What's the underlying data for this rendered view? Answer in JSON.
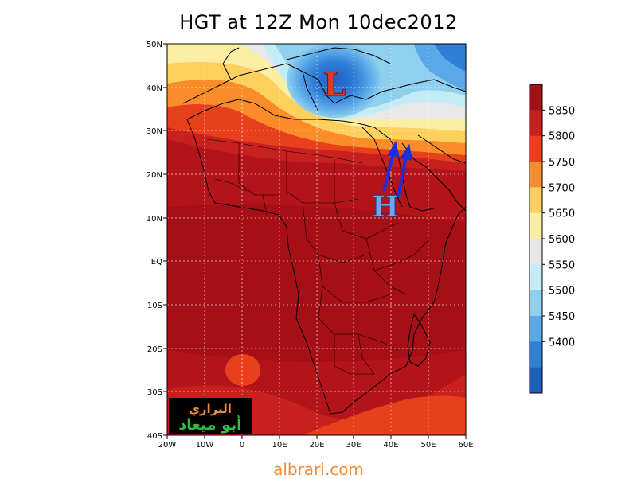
{
  "title": "HGT at 12Z Mon 10dec2012",
  "footer_url": "albrari.com",
  "map": {
    "projection": "lat-lon",
    "lon_range": [
      -20,
      60
    ],
    "lat_range": [
      -40,
      50
    ],
    "grid": "dashed",
    "lon_ticks": [
      "20W",
      "10W",
      "0",
      "10E",
      "20E",
      "30E",
      "40E",
      "50E",
      "60E"
    ],
    "lat_ticks": [
      "50N",
      "40N",
      "30N",
      "20N",
      "10N",
      "EQ",
      "10S",
      "20S",
      "30S",
      "40S"
    ]
  },
  "colorbar": {
    "labels": [
      "5850",
      "5800",
      "5750",
      "5700",
      "5650",
      "5600",
      "5550",
      "5500",
      "5450",
      "5400"
    ],
    "colors": [
      "#a50f15",
      "#c8201e",
      "#e8401c",
      "#fb8c2a",
      "#fdcf5c",
      "#fbeea3",
      "#e8e8e8",
      "#c4ecf6",
      "#8fd0ef",
      "#5aa8e8",
      "#2f7ed8",
      "#1e5fc4"
    ]
  },
  "annotations": {
    "low_label": "L",
    "high_label": "H",
    "low_color": "#e03a2a",
    "high_color": "#6aa8f0",
    "arrow_color": "#1a2fe0"
  },
  "watermark": {
    "line1": "البراري",
    "line2": "أبو ميعاد"
  }
}
